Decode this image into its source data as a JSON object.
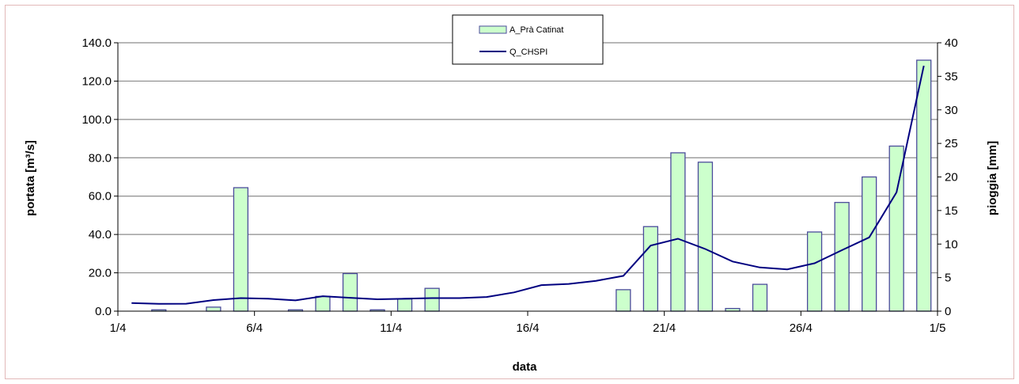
{
  "chart_data": {
    "type": "bar+line",
    "xlabel": "data",
    "ylabel_left": "portata [m³/s]",
    "ylabel_right": "pioggia [mm]",
    "x_tick_labels": [
      "1/4",
      "6/4",
      "11/4",
      "16/4",
      "21/4",
      "26/4",
      "1/5"
    ],
    "y_left_ticks": [
      "0.0",
      "20.0",
      "40.0",
      "60.0",
      "80.0",
      "100.0",
      "120.0",
      "140.0"
    ],
    "y_right_ticks": [
      "0",
      "5",
      "10",
      "15",
      "20",
      "25",
      "30",
      "35",
      "40"
    ],
    "ylim_left": [
      0,
      140
    ],
    "ylim_right": [
      0,
      40
    ],
    "grid": "horizontal",
    "legend_position": "top-center",
    "colors": {
      "bar_fill": "#ccffcc",
      "bar_stroke": "#4b4b9b",
      "line": "#000080",
      "grid": "#8c8c8c"
    },
    "days": [
      1,
      2,
      3,
      4,
      5,
      6,
      7,
      8,
      9,
      10,
      11,
      12,
      13,
      14,
      15,
      16,
      17,
      18,
      19,
      20,
      21,
      22,
      23,
      24,
      25,
      26,
      27,
      28,
      29,
      30
    ],
    "series": [
      {
        "name": "A_Prà Catinat",
        "kind": "bar",
        "axis": "right",
        "values": [
          0,
          0.2,
          0,
          0.6,
          18.4,
          0,
          0.2,
          2.2,
          5.6,
          0.2,
          1.8,
          3.4,
          0,
          0,
          0,
          0,
          0,
          0,
          3.2,
          12.6,
          23.6,
          22.2,
          0.4,
          4.0,
          0,
          11.8,
          16.2,
          20.0,
          24.6,
          37.4
        ]
      },
      {
        "name": "Q_CHSPI",
        "kind": "line",
        "axis": "left",
        "values": [
          4.2,
          3.8,
          3.9,
          5.8,
          6.8,
          6.5,
          5.6,
          7.8,
          7.0,
          6.2,
          6.5,
          6.8,
          6.8,
          7.4,
          9.8,
          13.6,
          14.2,
          15.8,
          18.4,
          34.2,
          37.8,
          32.4,
          25.9,
          22.8,
          21.8,
          25.0,
          31.8,
          38.5,
          62.0,
          128.0
        ]
      }
    ]
  }
}
